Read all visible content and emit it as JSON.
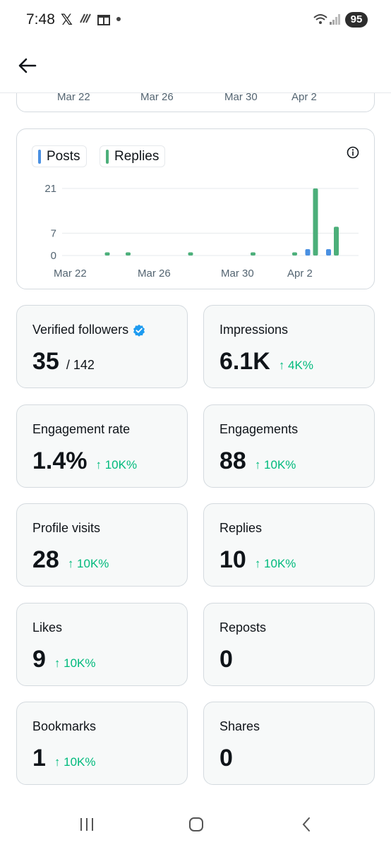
{
  "status": {
    "time": "7:48",
    "x_label": "𝕏",
    "battery": "95"
  },
  "header": {
    "back_icon": "arrow-left-icon"
  },
  "top_card": {
    "x_labels": [
      "Mar 22",
      "Mar 26",
      "Mar 30",
      "Apr 2"
    ]
  },
  "chart": {
    "legend": [
      {
        "label": "Posts",
        "color": "#4a90e2"
      },
      {
        "label": "Replies",
        "color": "#4caf7a"
      }
    ],
    "info_icon": "info-icon"
  },
  "chart_data": {
    "type": "bar",
    "x_tick_labels": [
      "Mar 22",
      "Mar 26",
      "Mar 30",
      "Apr 2"
    ],
    "y_ticks": [
      0,
      7,
      21
    ],
    "ylim": [
      0,
      21
    ],
    "grid": true,
    "legend_placement": "top-left",
    "series": [
      {
        "name": "Posts",
        "color": "#4a90e2",
        "points": [
          {
            "day": "Apr 3",
            "value": 2
          },
          {
            "day": "Apr 4",
            "value": 2
          }
        ]
      },
      {
        "name": "Replies",
        "color": "#4caf7a",
        "points": [
          {
            "day": "Mar 24",
            "value": 1
          },
          {
            "day": "Mar 25",
            "value": 1
          },
          {
            "day": "Mar 28",
            "value": 1
          },
          {
            "day": "Mar 31",
            "value": 1
          },
          {
            "day": "Apr 2",
            "value": 1
          },
          {
            "day": "Apr 3",
            "value": 21
          },
          {
            "day": "Apr 4",
            "value": 9
          }
        ]
      }
    ]
  },
  "metrics": [
    {
      "label": "Verified followers",
      "value": "35",
      "suffix": "/ 142",
      "change": "",
      "verified": true
    },
    {
      "label": "Impressions",
      "value": "6.1K",
      "suffix": "",
      "change": "↑ 4K%"
    },
    {
      "label": "Engagement rate",
      "value": "1.4%",
      "suffix": "",
      "change": "↑ 10K%"
    },
    {
      "label": "Engagements",
      "value": "88",
      "suffix": "",
      "change": "↑ 10K%"
    },
    {
      "label": "Profile visits",
      "value": "28",
      "suffix": "",
      "change": "↑ 10K%"
    },
    {
      "label": "Replies",
      "value": "10",
      "suffix": "",
      "change": "↑ 10K%"
    },
    {
      "label": "Likes",
      "value": "9",
      "suffix": "",
      "change": "↑ 10K%"
    },
    {
      "label": "Reposts",
      "value": "0",
      "suffix": "",
      "change": ""
    },
    {
      "label": "Bookmarks",
      "value": "1",
      "suffix": "",
      "change": "↑ 10K%"
    },
    {
      "label": "Shares",
      "value": "0",
      "suffix": "",
      "change": ""
    }
  ],
  "colors": {
    "accent_up": "#00ba7c",
    "verified": "#1d9bf0",
    "card_bg": "#f7f9f9"
  }
}
